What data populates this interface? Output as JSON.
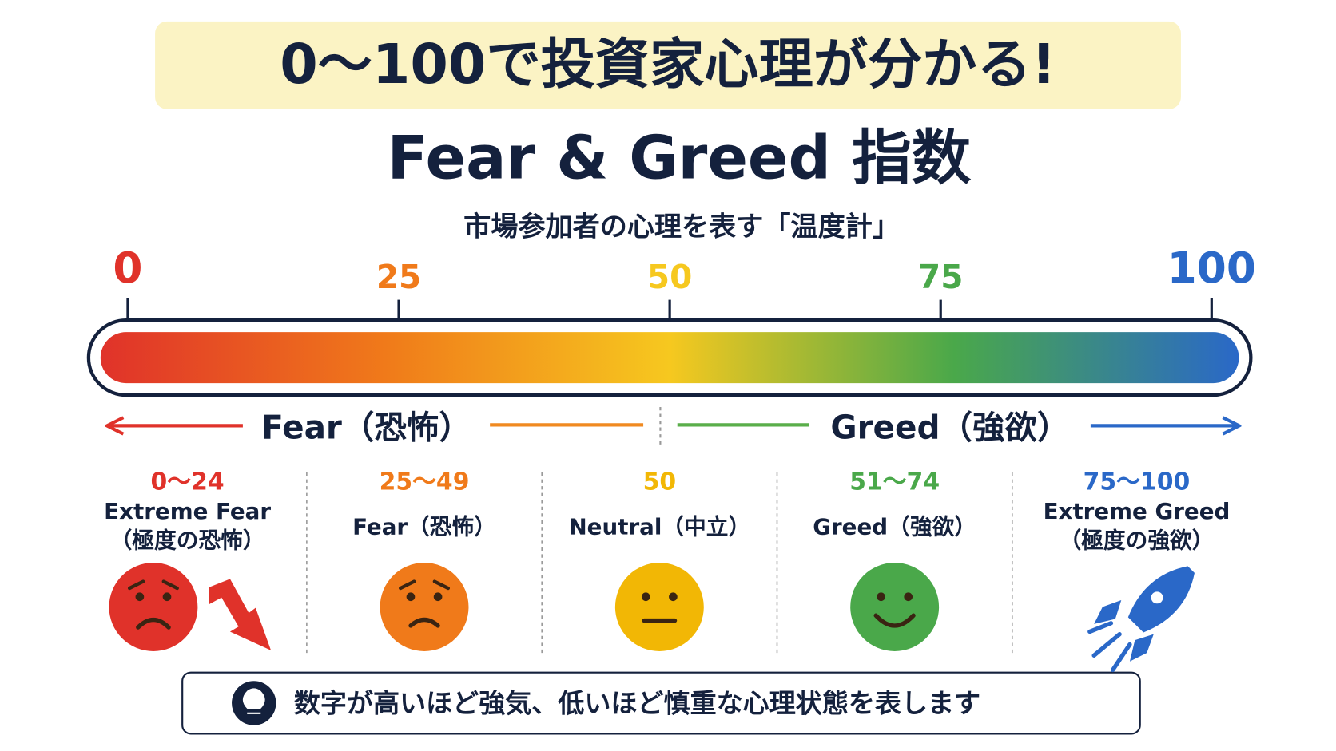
{
  "header": {
    "title": "0〜100で投資家心理が分かる!"
  },
  "title": "Fear & Greed 指数",
  "subtitle": "市場参加者の心理を表す「温度計」",
  "scale": {
    "ticks": [
      0,
      25,
      50,
      75,
      100
    ],
    "colors": [
      "#e0322a",
      "#f07a1a",
      "#f6c81f",
      "#4aa84a",
      "#2a68c8"
    ]
  },
  "sides": {
    "fear": "Fear（恐怖）",
    "greed": "Greed（強欲）"
  },
  "zones": [
    {
      "range": "0〜24",
      "lines": [
        "Extreme Fear",
        "（極度の恐怖）"
      ],
      "color": "#e0322a"
    },
    {
      "range": "25〜49",
      "lines": [
        "Fear（恐怖）"
      ],
      "color": "#f07a1a"
    },
    {
      "range": "50",
      "lines": [
        "Neutral（中立）"
      ],
      "color": "#f2b705"
    },
    {
      "range": "51〜74",
      "lines": [
        "Greed（強欲）"
      ],
      "color": "#4aa84a"
    },
    {
      "range": "75〜100",
      "lines": [
        "Extreme Greed",
        "（極度の強欲）"
      ],
      "color": "#2a68c8"
    }
  ],
  "note": "数字が高いほど強気、低いほど慎重な心理状態を表します"
}
